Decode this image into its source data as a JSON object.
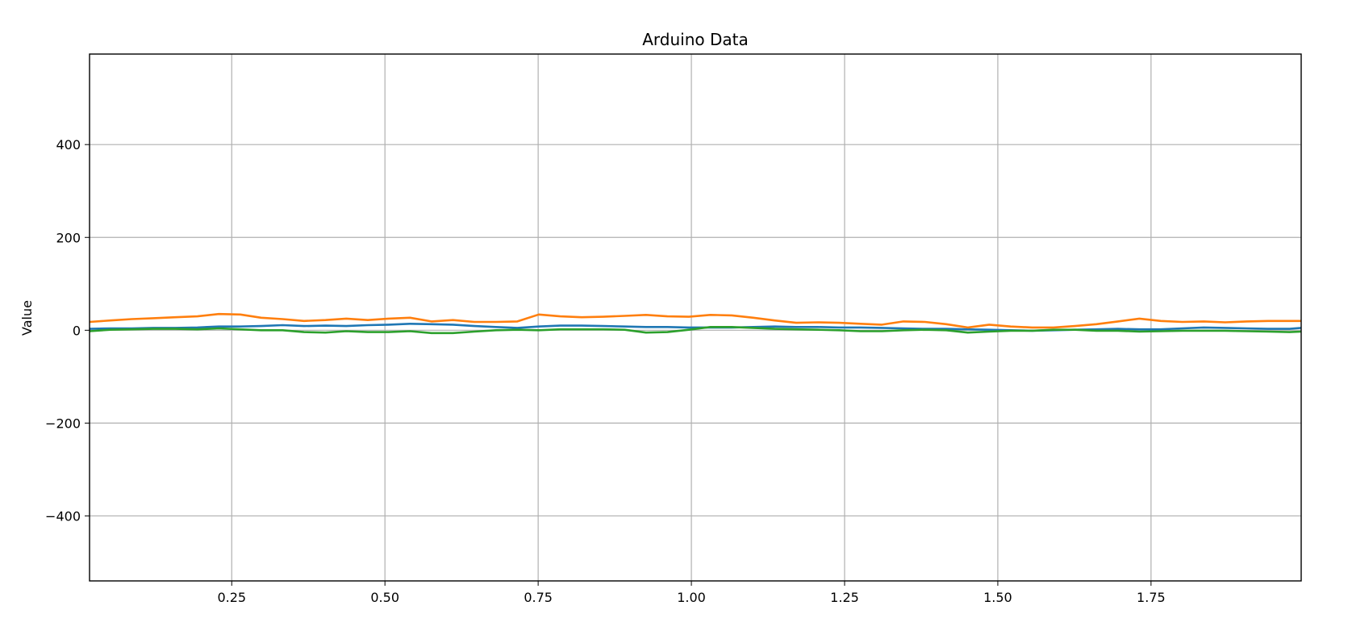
{
  "chart_data": {
    "type": "line",
    "title": "Arduino Data",
    "xlabel": "",
    "ylabel": "Value",
    "xlim": [
      0.018,
      1.995
    ],
    "ylim": [
      -540,
      595
    ],
    "grid": true,
    "xticks": [
      0.25,
      0.5,
      0.75,
      1.0,
      1.25,
      1.5,
      1.75
    ],
    "xtick_labels": [
      "0.25",
      "0.50",
      "0.75",
      "1.00",
      "1.25",
      "1.50",
      "1.75"
    ],
    "yticks": [
      -400,
      -200,
      0,
      200,
      400
    ],
    "ytick_labels": [
      "−400",
      "−200",
      "0",
      "200",
      "400"
    ],
    "x": [
      0.018,
      0.052,
      0.087,
      0.122,
      0.158,
      0.194,
      0.229,
      0.264,
      0.298,
      0.333,
      0.368,
      0.403,
      0.437,
      0.472,
      0.506,
      0.541,
      0.576,
      0.611,
      0.646,
      0.681,
      0.716,
      0.751,
      0.786,
      0.821,
      0.856,
      0.891,
      0.926,
      0.961,
      0.996,
      1.031,
      1.066,
      1.101,
      1.136,
      1.171,
      1.206,
      1.241,
      1.276,
      1.311,
      1.346,
      1.381,
      1.416,
      1.451,
      1.486,
      1.521,
      1.556,
      1.591,
      1.626,
      1.661,
      1.696,
      1.731,
      1.766,
      1.801,
      1.836,
      1.871,
      1.906,
      1.941,
      1.976,
      1.995
    ],
    "series": [
      {
        "color": "#1f77b4",
        "values": [
          3,
          4,
          4,
          5,
          5,
          6,
          8,
          8,
          9,
          11,
          9,
          10,
          9,
          11,
          12,
          14,
          13,
          12,
          9,
          7,
          5,
          8,
          10,
          10,
          9,
          8,
          7,
          7,
          6,
          6,
          6,
          7,
          8,
          7,
          7,
          6,
          6,
          5,
          4,
          3,
          3,
          2,
          1,
          0,
          -1,
          0,
          1,
          2,
          3,
          2,
          2,
          4,
          6,
          5,
          4,
          3,
          3,
          5
        ]
      },
      {
        "color": "#ff7f0e",
        "values": [
          18,
          21,
          24,
          26,
          28,
          30,
          35,
          34,
          27,
          24,
          20,
          22,
          25,
          22,
          25,
          27,
          19,
          22,
          18,
          18,
          19,
          34,
          30,
          28,
          29,
          31,
          33,
          30,
          29,
          33,
          32,
          27,
          21,
          16,
          17,
          16,
          14,
          12,
          19,
          18,
          13,
          6,
          12,
          8,
          6,
          6,
          9,
          13,
          19,
          25,
          20,
          18,
          19,
          17,
          19,
          20,
          20,
          20
        ]
      },
      {
        "color": "#2ca02c",
        "values": [
          -2,
          1,
          2,
          3,
          3,
          2,
          4,
          2,
          0,
          0,
          -4,
          -5,
          -2,
          -4,
          -4,
          -2,
          -6,
          -6,
          -3,
          0,
          1,
          0,
          2,
          2,
          2,
          1,
          -5,
          -4,
          1,
          7,
          7,
          5,
          3,
          2,
          1,
          0,
          -2,
          -2,
          0,
          1,
          0,
          -5,
          -3,
          -1,
          -1,
          1,
          1,
          -1,
          -1,
          -3,
          -2,
          -1,
          -1,
          -1,
          -2,
          -3,
          -4,
          -3
        ]
      }
    ]
  }
}
